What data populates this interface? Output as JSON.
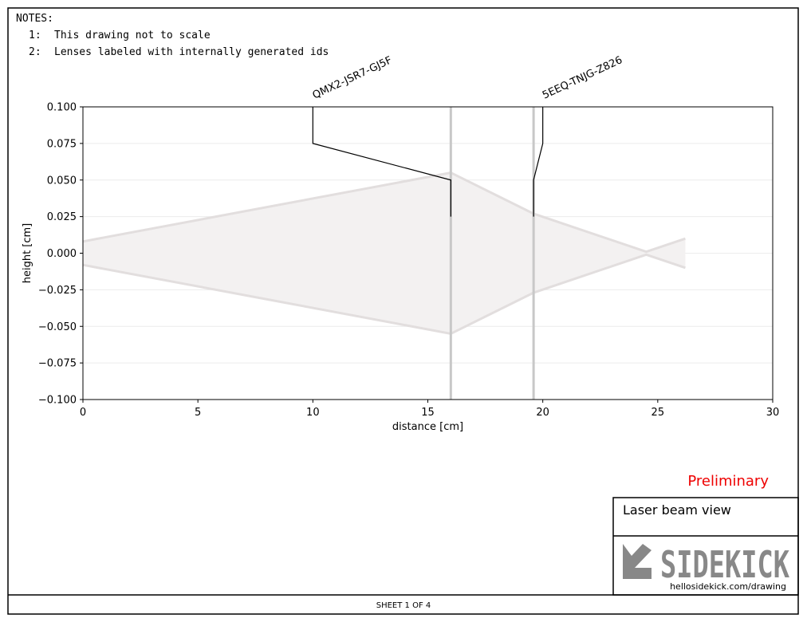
{
  "notes": {
    "title": "NOTES:",
    "items": [
      {
        "num": "1:",
        "text": "This drawing not to scale"
      },
      {
        "num": "2:",
        "text": "Lenses labeled with internally generated ids"
      }
    ]
  },
  "chart_data": {
    "type": "line",
    "xlabel": "distance [cm]",
    "ylabel": "height [cm]",
    "xlim": [
      0,
      30
    ],
    "ylim": [
      -0.1,
      0.1
    ],
    "xticks": [
      0,
      5,
      10,
      15,
      20,
      25,
      30
    ],
    "yticks": [
      {
        "value": 0.1,
        "label": "0.100"
      },
      {
        "value": 0.075,
        "label": "0.075"
      },
      {
        "value": 0.05,
        "label": "0.050"
      },
      {
        "value": 0.025,
        "label": "0.025"
      },
      {
        "value": 0,
        "label": "0.000"
      },
      {
        "value": -0.025,
        "label": "−0.025"
      },
      {
        "value": -0.05,
        "label": "−0.050"
      },
      {
        "value": -0.075,
        "label": "−0.075"
      },
      {
        "value": -0.1,
        "label": "−0.100"
      }
    ],
    "grid": true,
    "x": [
      0,
      16,
      19.6,
      24.5,
      26.2
    ],
    "series": [
      {
        "color": "#e2dede",
        "values": [
          0.008,
          0.055,
          0.027,
          0.001,
          0.01
        ]
      },
      {
        "color": "#e2dede",
        "values": [
          -0.008,
          -0.055,
          -0.027,
          -0.001,
          -0.01
        ]
      }
    ],
    "lenses": [
      {
        "name": "QMX2-JSR7-GJ5F",
        "x": 16,
        "label_x": 10,
        "leader_y": [
          0.1,
          0.075,
          0.05,
          0.025
        ]
      },
      {
        "name": "5EEQ-TNJG-Z826",
        "x": 19.6,
        "label_x": 20,
        "leader_y": [
          0.1,
          0.075,
          0.05,
          0.025
        ]
      }
    ]
  },
  "status": "Preliminary",
  "view_title": "Laser beam view",
  "logo": "SIDEKICK",
  "url": "hellosidekick.com/drawing",
  "sheet": "SHEET 1 OF 4"
}
